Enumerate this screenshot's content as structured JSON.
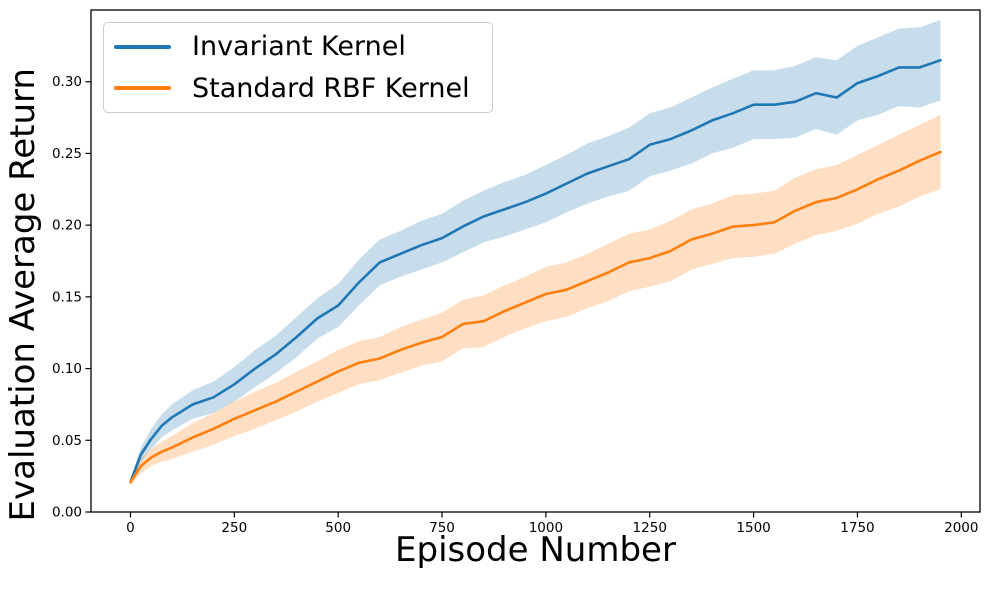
{
  "figure": {
    "background": "#ffffff"
  },
  "chart_data": {
    "type": "line",
    "title": "",
    "xlabel": "Episode Number",
    "ylabel": "Evaluation Average Return",
    "xlim": [
      -95,
      2045
    ],
    "ylim": [
      0,
      0.35
    ],
    "grid": false,
    "legend_position": "upper left",
    "frame_color": "#000000",
    "x_tick_values": [
      0,
      250,
      500,
      750,
      1000,
      1250,
      1500,
      1750,
      2000
    ],
    "x_tick_labels": [
      "0",
      "250",
      "500",
      "750",
      "1000",
      "1250",
      "1500",
      "1750",
      "2000"
    ],
    "y_tick_values": [
      0.0,
      0.05,
      0.1,
      0.15,
      0.2,
      0.25,
      0.3
    ],
    "y_tick_labels": [
      "0.00",
      "0.05",
      "0.10",
      "0.15",
      "0.20",
      "0.25",
      "0.30"
    ],
    "series": [
      {
        "name": "Invariant Kernel",
        "key": "invariant-kernel",
        "color": "#1f77b4",
        "band_opacity": 0.25,
        "x": [
          0,
          25,
          50,
          75,
          100,
          150,
          200,
          250,
          300,
          350,
          400,
          450,
          500,
          550,
          600,
          650,
          700,
          750,
          800,
          850,
          900,
          950,
          1000,
          1050,
          1100,
          1150,
          1200,
          1250,
          1300,
          1350,
          1400,
          1450,
          1500,
          1550,
          1600,
          1650,
          1700,
          1750,
          1800,
          1850,
          1900,
          1950
        ],
        "values": [
          0.021,
          0.04,
          0.051,
          0.06,
          0.066,
          0.075,
          0.08,
          0.089,
          0.1,
          0.11,
          0.122,
          0.135,
          0.144,
          0.16,
          0.174,
          0.18,
          0.186,
          0.191,
          0.199,
          0.206,
          0.211,
          0.216,
          0.222,
          0.229,
          0.236,
          0.241,
          0.246,
          0.256,
          0.26,
          0.266,
          0.273,
          0.278,
          0.284,
          0.284,
          0.286,
          0.292,
          0.289,
          0.299,
          0.304,
          0.31,
          0.31,
          0.315
        ],
        "band_halfwidth": [
          0.002,
          0.005,
          0.007,
          0.008,
          0.009,
          0.01,
          0.011,
          0.012,
          0.013,
          0.013,
          0.014,
          0.014,
          0.015,
          0.016,
          0.016,
          0.016,
          0.017,
          0.017,
          0.018,
          0.018,
          0.019,
          0.019,
          0.02,
          0.02,
          0.021,
          0.021,
          0.022,
          0.022,
          0.022,
          0.023,
          0.023,
          0.024,
          0.024,
          0.024,
          0.025,
          0.025,
          0.026,
          0.026,
          0.027,
          0.027,
          0.028,
          0.028
        ]
      },
      {
        "name": "Standard RBF Kernel",
        "key": "standard-rbf-kernel",
        "color": "#ff7f0e",
        "band_opacity": 0.25,
        "x": [
          0,
          25,
          50,
          75,
          100,
          150,
          200,
          250,
          300,
          350,
          400,
          450,
          500,
          550,
          600,
          650,
          700,
          750,
          800,
          850,
          900,
          950,
          1000,
          1050,
          1100,
          1150,
          1200,
          1250,
          1300,
          1350,
          1400,
          1450,
          1500,
          1550,
          1600,
          1650,
          1700,
          1750,
          1800,
          1850,
          1900,
          1950
        ],
        "values": [
          0.021,
          0.032,
          0.038,
          0.042,
          0.045,
          0.052,
          0.058,
          0.065,
          0.071,
          0.077,
          0.084,
          0.091,
          0.098,
          0.104,
          0.107,
          0.113,
          0.118,
          0.122,
          0.131,
          0.133,
          0.14,
          0.146,
          0.152,
          0.155,
          0.161,
          0.167,
          0.174,
          0.177,
          0.182,
          0.19,
          0.194,
          0.199,
          0.2,
          0.202,
          0.21,
          0.216,
          0.219,
          0.225,
          0.232,
          0.238,
          0.245,
          0.251
        ],
        "band_halfwidth": [
          0.003,
          0.005,
          0.006,
          0.007,
          0.008,
          0.01,
          0.011,
          0.012,
          0.013,
          0.013,
          0.014,
          0.014,
          0.015,
          0.015,
          0.015,
          0.016,
          0.016,
          0.017,
          0.017,
          0.018,
          0.018,
          0.018,
          0.019,
          0.019,
          0.019,
          0.02,
          0.02,
          0.02,
          0.021,
          0.021,
          0.021,
          0.022,
          0.022,
          0.022,
          0.023,
          0.023,
          0.023,
          0.024,
          0.024,
          0.025,
          0.025,
          0.026
        ]
      }
    ]
  }
}
